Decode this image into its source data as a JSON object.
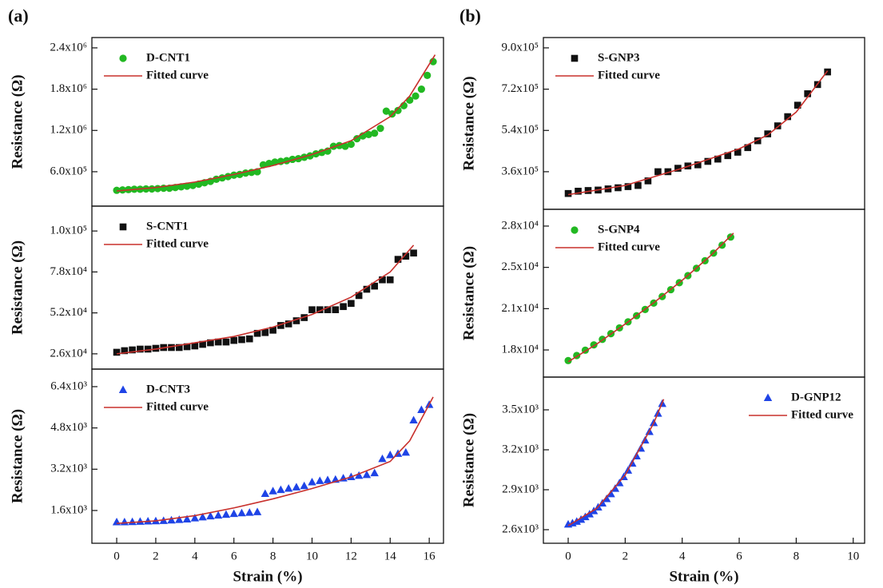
{
  "chart_data": [
    {
      "type": "scatter",
      "panel_label": "(a)",
      "y_label": "Resistance (Ω)",
      "legend": "upper left",
      "xlim": [
        -1.27,
        16.73
      ],
      "ylim": [
        100000,
        2550000
      ],
      "yticks": [
        {
          "value": 600000,
          "label": "6.0x10⁵"
        },
        {
          "value": 1200000,
          "label": "1.2x10⁶"
        },
        {
          "value": 1800000,
          "label": "1.8x10⁶"
        },
        {
          "value": 2400000,
          "label": "2.4x10⁶"
        }
      ],
      "series": [
        {
          "name": "D-CNT1",
          "color": "#22b822",
          "marker": "circle",
          "x": [
            0,
            0.3,
            0.6,
            0.9,
            1.2,
            1.5,
            1.8,
            2.1,
            2.4,
            2.7,
            3,
            3.3,
            3.6,
            3.9,
            4.2,
            4.5,
            4.8,
            5.1,
            5.4,
            5.7,
            6,
            6.3,
            6.6,
            6.9,
            7.2,
            7.5,
            7.8,
            8.1,
            8.4,
            8.7,
            9,
            9.3,
            9.6,
            9.9,
            10.2,
            10.5,
            10.8,
            11.1,
            11.4,
            11.7,
            12,
            12.3,
            12.6,
            12.9,
            13.2,
            13.5,
            13.8,
            14.1,
            14.4,
            14.7,
            15,
            15.3,
            15.6,
            15.9,
            16.2
          ],
          "values": [
            330000,
            335000,
            340000,
            345000,
            345000,
            350000,
            350000,
            355000,
            360000,
            360000,
            370000,
            380000,
            390000,
            400000,
            420000,
            440000,
            460000,
            490000,
            510000,
            530000,
            550000,
            560000,
            580000,
            590000,
            600000,
            700000,
            720000,
            740000,
            750000,
            760000,
            780000,
            790000,
            810000,
            830000,
            860000,
            880000,
            900000,
            970000,
            980000,
            970000,
            1000000,
            1080000,
            1120000,
            1140000,
            1160000,
            1230000,
            1480000,
            1440000,
            1490000,
            1560000,
            1640000,
            1700000,
            1800000,
            2000000,
            2200000
          ]
        },
        {
          "name": "Fitted curve",
          "color": "#c8302c",
          "marker": "line",
          "x": [
            0,
            2,
            4,
            6,
            8,
            10,
            12,
            14,
            15,
            16.3
          ],
          "values": [
            320000,
            370000,
            450000,
            560000,
            690000,
            850000,
            1050000,
            1400000,
            1700000,
            2300000
          ]
        }
      ]
    },
    {
      "type": "scatter",
      "y_label": "Resistance (Ω)",
      "legend": "upper left",
      "xlim": [
        -1.27,
        16.73
      ],
      "ylim": [
        16300,
        119800
      ],
      "yticks": [
        {
          "value": 26000,
          "label": "2.6x10⁴"
        },
        {
          "value": 52000,
          "label": "5.2x10⁴"
        },
        {
          "value": 78000,
          "label": "7.8x10⁴"
        },
        {
          "value": 104000,
          "label": "1.0x10⁵"
        }
      ],
      "series": [
        {
          "name": "S-CNT1",
          "color": "#111111",
          "marker": "square",
          "x": [
            0,
            0.4,
            0.8,
            1.2,
            1.6,
            2,
            2.4,
            2.8,
            3.2,
            3.6,
            4,
            4.4,
            4.8,
            5.2,
            5.6,
            6,
            6.4,
            6.8,
            7.2,
            7.6,
            8,
            8.4,
            8.8,
            9.2,
            9.6,
            10,
            10.4,
            10.8,
            11.2,
            11.6,
            12,
            12.4,
            12.8,
            13.2,
            13.6,
            14,
            14.4,
            14.8,
            15.2
          ],
          "values": [
            27000,
            28000,
            28500,
            29000,
            29000,
            29500,
            30000,
            30000,
            30000,
            30500,
            31000,
            32000,
            33000,
            33500,
            33500,
            34500,
            35000,
            35500,
            39000,
            39500,
            41000,
            44000,
            45000,
            47000,
            49000,
            54000,
            54000,
            54000,
            54000,
            56000,
            58000,
            63000,
            67000,
            69000,
            73000,
            73000,
            86000,
            88000,
            90000
          ]
        },
        {
          "name": "Fitted curve",
          "color": "#c8302c",
          "marker": "line",
          "x": [
            0,
            2,
            4,
            6,
            8,
            10,
            12,
            14,
            15.2
          ],
          "values": [
            26000,
            29000,
            33000,
            37000,
            43000,
            51000,
            62000,
            78000,
            95000
          ]
        }
      ]
    },
    {
      "type": "scatter",
      "y_label": "Resistance (Ω)",
      "x_label": "Strain (%)",
      "legend": "upper left",
      "xlim": [
        -1.27,
        16.73
      ],
      "ylim": [
        330,
        7080
      ],
      "xticks": [
        0,
        2,
        4,
        6,
        8,
        10,
        12,
        14,
        16
      ],
      "yticks": [
        {
          "value": 1600,
          "label": "1.6x10³"
        },
        {
          "value": 3200,
          "label": "3.2x10³"
        },
        {
          "value": 4800,
          "label": "4.8x10³"
        },
        {
          "value": 6400,
          "label": "6.4x10³"
        }
      ],
      "series": [
        {
          "name": "D-CNT3",
          "color": "#1f44e6",
          "marker": "triangle",
          "x": [
            0,
            0.4,
            0.8,
            1.2,
            1.6,
            2,
            2.4,
            2.8,
            3.2,
            3.6,
            4,
            4.4,
            4.8,
            5.2,
            5.6,
            6,
            6.4,
            6.8,
            7.2,
            7.6,
            8,
            8.4,
            8.8,
            9.2,
            9.6,
            10,
            10.4,
            10.8,
            11.2,
            11.6,
            12,
            12.4,
            12.8,
            13.2,
            13.6,
            14,
            14.4,
            14.8,
            15.2,
            15.6,
            16
          ],
          "values": [
            1150,
            1150,
            1160,
            1170,
            1180,
            1190,
            1200,
            1220,
            1240,
            1260,
            1300,
            1340,
            1380,
            1410,
            1440,
            1470,
            1500,
            1520,
            1540,
            2250,
            2350,
            2400,
            2450,
            2500,
            2550,
            2700,
            2750,
            2780,
            2800,
            2850,
            2900,
            2950,
            2980,
            3050,
            3600,
            3750,
            3800,
            3850,
            5100,
            5500,
            5700
          ]
        },
        {
          "name": "Fitted curve",
          "color": "#c8302c",
          "marker": "line",
          "x": [
            0,
            2,
            4,
            6,
            8,
            10,
            12,
            14,
            15,
            16.2
          ],
          "values": [
            1100,
            1200,
            1400,
            1700,
            2050,
            2450,
            2900,
            3500,
            4300,
            6000
          ]
        }
      ]
    },
    {
      "type": "scatter",
      "panel_label": "(b)",
      "y_label": "Resistance (Ω)",
      "legend": "upper left",
      "xlim": [
        -0.87,
        10.4
      ],
      "ylim": [
        196000,
        945000
      ],
      "yticks": [
        {
          "value": 360000,
          "label": "3.6x10⁵"
        },
        {
          "value": 540000,
          "label": "5.4x10⁵"
        },
        {
          "value": 720000,
          "label": "7.2x10⁵"
        },
        {
          "value": 900000,
          "label": "9.0x10⁵"
        }
      ],
      "series": [
        {
          "name": "S-GNP3",
          "color": "#111111",
          "marker": "square",
          "x": [
            0,
            0.35,
            0.7,
            1.05,
            1.4,
            1.75,
            2.1,
            2.45,
            2.8,
            3.15,
            3.5,
            3.85,
            4.2,
            4.55,
            4.9,
            5.25,
            5.6,
            5.95,
            6.3,
            6.65,
            7,
            7.35,
            7.7,
            8.05,
            8.4,
            8.75,
            9.1
          ],
          "values": [
            265000,
            275000,
            278000,
            280000,
            285000,
            290000,
            295000,
            300000,
            320000,
            360000,
            360000,
            375000,
            385000,
            390000,
            405000,
            415000,
            430000,
            445000,
            465000,
            495000,
            525000,
            560000,
            600000,
            650000,
            700000,
            740000,
            795000
          ]
        },
        {
          "name": "Fitted curve",
          "color": "#c8302c",
          "marker": "line",
          "x": [
            0,
            2,
            4,
            6,
            7,
            8,
            9.1
          ],
          "values": [
            260000,
            300000,
            375000,
            460000,
            520000,
            620000,
            800000
          ]
        }
      ]
    },
    {
      "type": "scatter",
      "y_label": "Resistance (Ω)",
      "legend": "upper left",
      "xlim": [
        -0.87,
        10.4
      ],
      "ylim": [
        15200,
        29420
      ],
      "yticks": [
        {
          "value": 17500,
          "label": "1.8x10⁴"
        },
        {
          "value": 21000,
          "label": "2.1x10⁴"
        },
        {
          "value": 24500,
          "label": "2.5x10⁴"
        },
        {
          "value": 28000,
          "label": "2.8x10⁴"
        }
      ],
      "series": [
        {
          "name": "S-GNP4",
          "color": "#22b822",
          "marker": "circle",
          "x": [
            0,
            0.3,
            0.6,
            0.9,
            1.2,
            1.5,
            1.8,
            2.1,
            2.4,
            2.7,
            3,
            3.3,
            3.6,
            3.9,
            4.2,
            4.5,
            4.8,
            5.1,
            5.4,
            5.7
          ],
          "values": [
            16600,
            17030,
            17480,
            17930,
            18400,
            18880,
            19370,
            19880,
            20400,
            20930,
            21470,
            22030,
            22610,
            23200,
            23800,
            24420,
            25060,
            25710,
            26380,
            27070
          ]
        },
        {
          "name": "Fitted curve",
          "color": "#c8302c",
          "marker": "line",
          "x": [
            0,
            1,
            2,
            3,
            4,
            5,
            5.8
          ],
          "values": [
            16500,
            18000,
            19700,
            21500,
            23400,
            25500,
            27400
          ]
        }
      ]
    },
    {
      "type": "scatter",
      "y_label": "Resistance (Ω)",
      "x_label": "Strain (%)",
      "legend": "upper right",
      "xlim": [
        -0.87,
        10.4
      ],
      "ylim": [
        2498,
        3746
      ],
      "xticks": [
        0,
        2,
        4,
        6,
        8,
        10
      ],
      "yticks": [
        {
          "value": 2600,
          "label": "2.6x10³"
        },
        {
          "value": 2900,
          "label": "2.9x10³"
        },
        {
          "value": 3200,
          "label": "3.2x10³"
        },
        {
          "value": 3500,
          "label": "3.5x10³"
        }
      ],
      "series": [
        {
          "name": "D-GNP12",
          "color": "#1f44e6",
          "marker": "triangle",
          "x": [
            0,
            0.15,
            0.3,
            0.45,
            0.6,
            0.75,
            0.9,
            1.05,
            1.2,
            1.35,
            1.5,
            1.65,
            1.8,
            1.95,
            2.1,
            2.25,
            2.4,
            2.55,
            2.7,
            2.85,
            3,
            3.15,
            3.3
          ],
          "values": [
            2640,
            2649,
            2661,
            2676,
            2695,
            2716,
            2740,
            2768,
            2798,
            2831,
            2868,
            2908,
            2950,
            2996,
            3045,
            3097,
            3152,
            3210,
            3271,
            3335,
            3402,
            3472,
            3546
          ]
        },
        {
          "name": "Fitted curve",
          "color": "#c8302c",
          "marker": "line",
          "x": [
            0,
            1,
            2,
            3,
            3.35
          ],
          "values": [
            2630,
            2760,
            3010,
            3400,
            3580
          ]
        }
      ]
    }
  ]
}
